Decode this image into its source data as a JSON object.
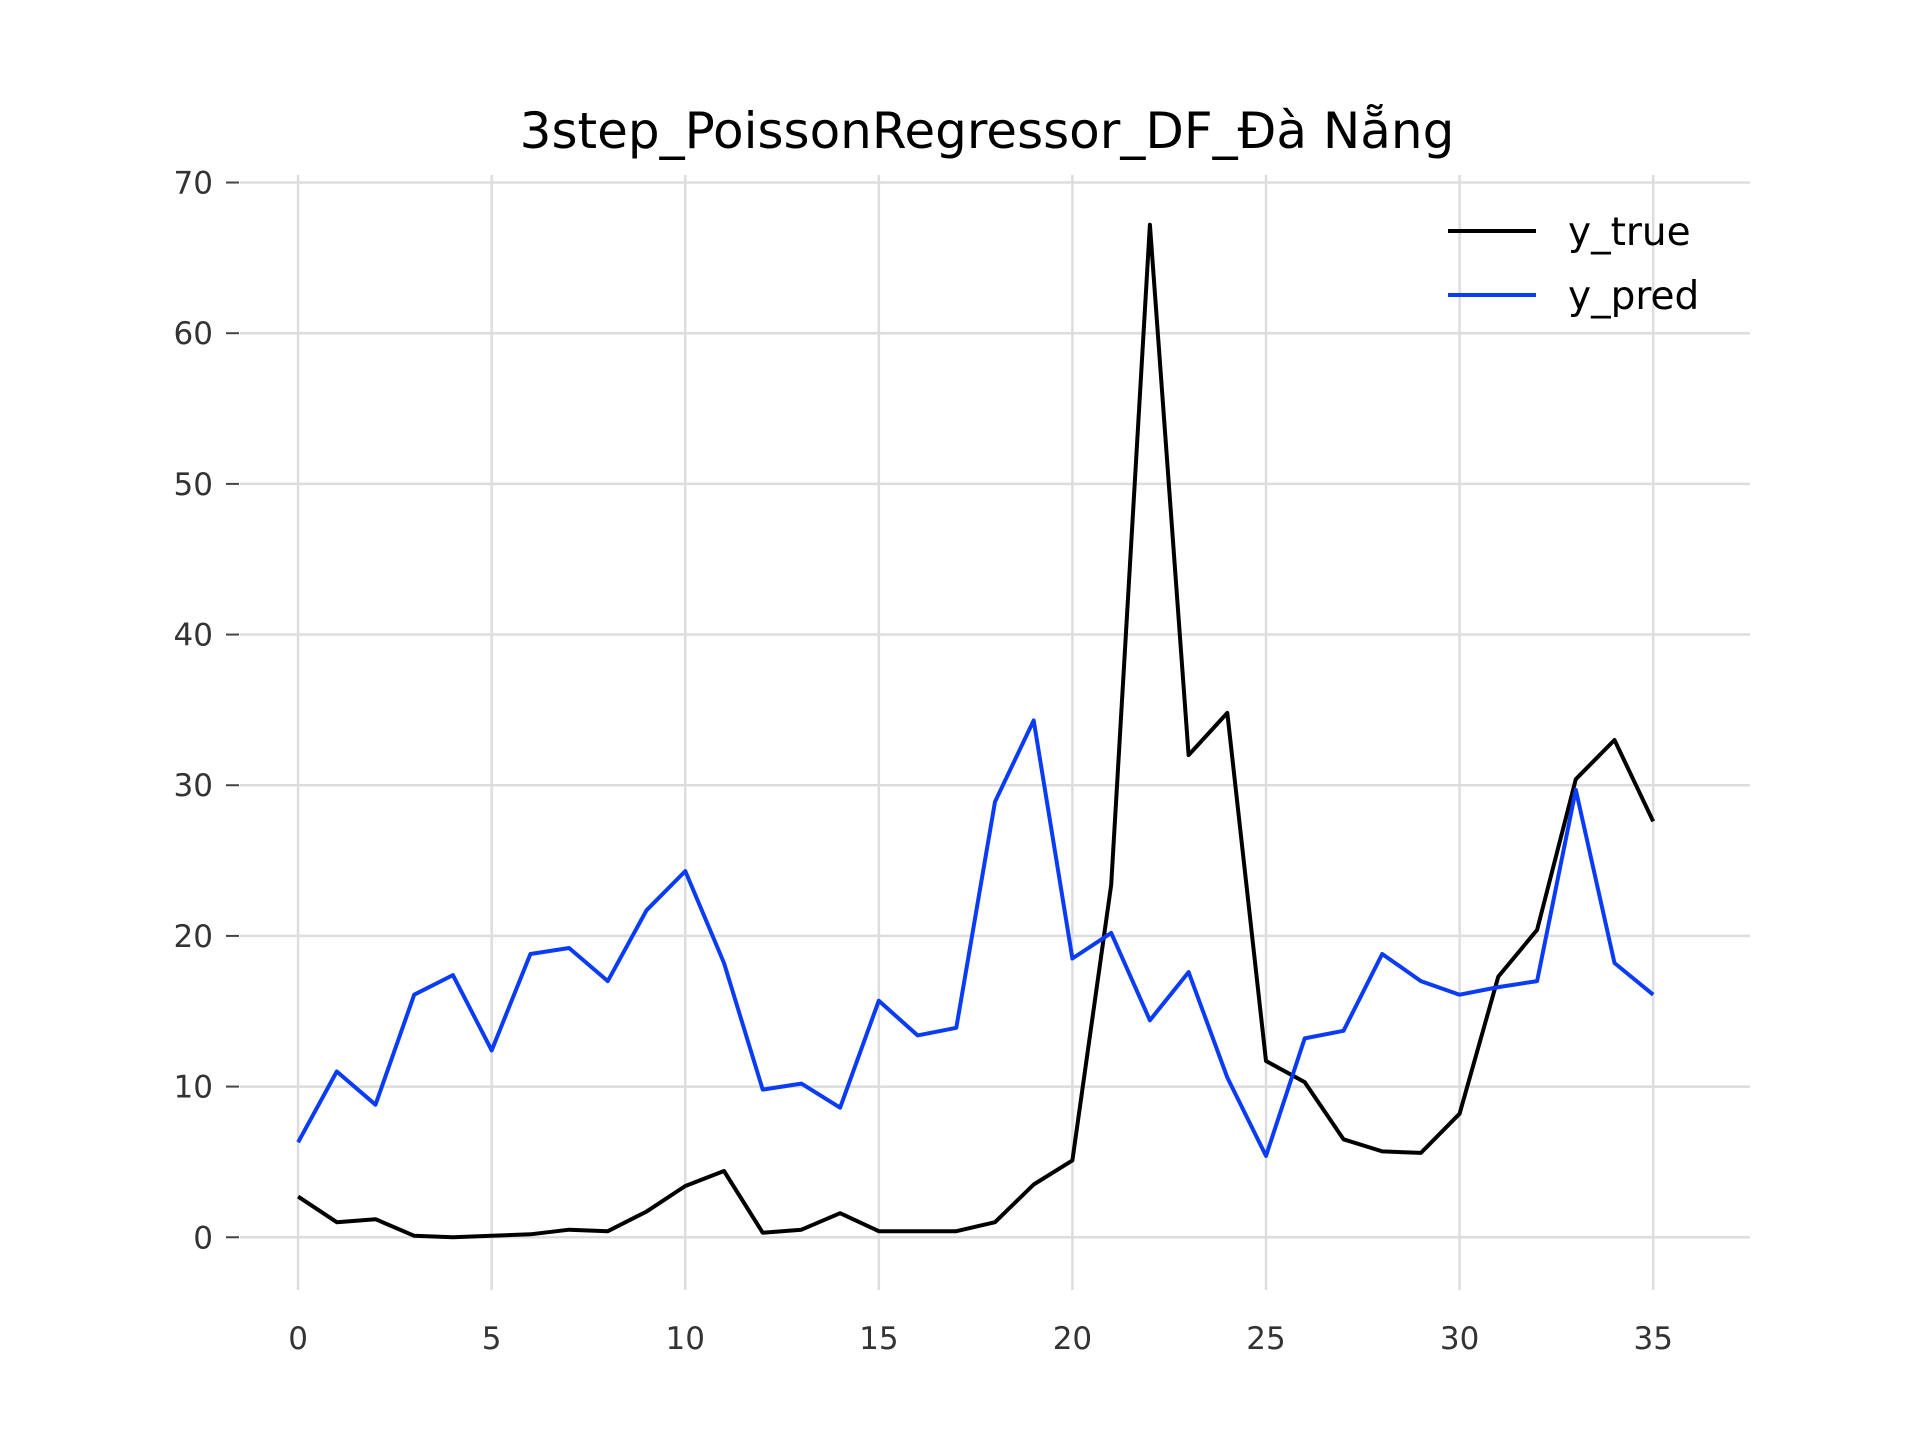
{
  "chart_data": {
    "type": "line",
    "title": "3step_PoissonRegressor_DF_Đà Nẵng",
    "xlabel": "",
    "ylabel": "",
    "xlim": [
      -1.5,
      37.5
    ],
    "ylim": [
      -3.5,
      70.5
    ],
    "x_ticks": [
      0,
      5,
      10,
      15,
      20,
      25,
      30,
      35
    ],
    "y_ticks": [
      0,
      10,
      20,
      30,
      40,
      50,
      60,
      70
    ],
    "grid": true,
    "legend_position": "top-right",
    "x": [
      0,
      1,
      2,
      3,
      4,
      5,
      6,
      7,
      8,
      9,
      10,
      11,
      12,
      13,
      14,
      15,
      16,
      17,
      18,
      19,
      20,
      21,
      22,
      23,
      24,
      25,
      26,
      27,
      28,
      29,
      30,
      31,
      32,
      33,
      34,
      35
    ],
    "series": [
      {
        "name": "y_true",
        "color": "#000000",
        "values": [
          2.7,
          1.0,
          1.2,
          0.1,
          0.0,
          0.1,
          0.2,
          0.5,
          0.4,
          1.7,
          3.4,
          4.4,
          0.3,
          0.5,
          1.6,
          0.4,
          0.4,
          0.4,
          1.0,
          3.5,
          5.1,
          23.4,
          67.2,
          32.0,
          34.8,
          11.7,
          10.3,
          6.5,
          5.7,
          5.6,
          8.2,
          17.3,
          20.4,
          30.4,
          33.0,
          27.6
        ]
      },
      {
        "name": "y_pred",
        "color": "#0a3cf5",
        "values": [
          6.3,
          11.0,
          8.8,
          16.1,
          17.4,
          12.4,
          18.8,
          19.2,
          17.0,
          21.7,
          24.3,
          18.2,
          9.8,
          10.2,
          8.6,
          15.7,
          13.4,
          13.9,
          28.9,
          34.3,
          18.5,
          20.2,
          14.4,
          17.6,
          10.6,
          5.4,
          13.2,
          13.7,
          18.8,
          17.0,
          16.1,
          16.6,
          17.0,
          29.7,
          18.2,
          16.1
        ]
      }
    ]
  }
}
